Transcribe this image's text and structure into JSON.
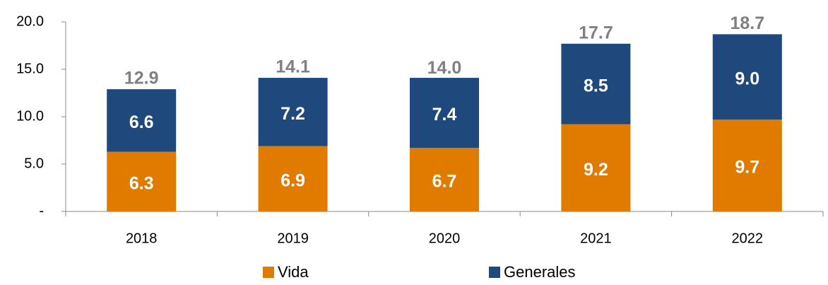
{
  "chart_data": {
    "type": "stacked_bar",
    "categories": [
      "2018",
      "2019",
      "2020",
      "2021",
      "2022"
    ],
    "series": [
      {
        "name": "Vida",
        "color": "#e07b00",
        "values": [
          6.3,
          6.9,
          6.7,
          9.2,
          9.7
        ]
      },
      {
        "name": "Generales",
        "color": "#1f497d",
        "values": [
          6.6,
          7.2,
          7.4,
          8.5,
          9.0
        ],
        "value_labels": [
          "6.6",
          "7.2",
          "7.4",
          "8.5",
          "9.0"
        ]
      }
    ],
    "totals": [
      12.9,
      14.1,
      14.0,
      17.7,
      18.7
    ],
    "total_labels": [
      "12.9",
      "14.1",
      "14.0",
      "17.7",
      "18.7"
    ],
    "ylim": [
      0,
      20
    ],
    "yticks": [
      {
        "value": 0,
        "label": "-"
      },
      {
        "value": 5,
        "label": "5.0"
      },
      {
        "value": 10,
        "label": "10.0"
      },
      {
        "value": 15,
        "label": "15.0"
      },
      {
        "value": 20,
        "label": "20.0"
      }
    ],
    "grid": false,
    "legend": "bottom"
  }
}
